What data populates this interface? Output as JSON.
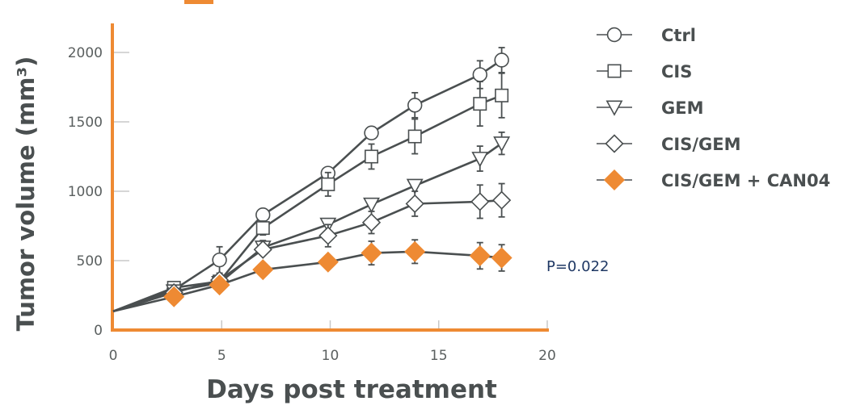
{
  "chart_data": {
    "type": "line",
    "title": "",
    "xlabel": "Days post treatment",
    "ylabel": "Tumor volume (mm³)",
    "xlim": [
      0,
      20
    ],
    "ylim": [
      0,
      2000
    ],
    "xticks": [
      "0",
      "5",
      "10",
      "15",
      "20"
    ],
    "yticks": [
      "0",
      "500",
      "1000",
      "1500",
      "2000"
    ],
    "legend_position": "right",
    "annotation": "P=0.022",
    "colors": {
      "line": "#4a4f50",
      "accent": "#ee8a33",
      "annotation": "#1f3864"
    },
    "series": [
      {
        "name": "Ctrl",
        "marker": "circle",
        "filled": false,
        "x": [
          0,
          2.8,
          4.9,
          6.9,
          9.9,
          11.9,
          13.9,
          16.9,
          17.9
        ],
        "y": [
          135,
          290,
          505,
          830,
          1130,
          1420,
          1620,
          1840,
          1945
        ],
        "err": [
          0,
          0,
          95,
          0,
          0,
          0,
          90,
          100,
          90
        ]
      },
      {
        "name": "CIS",
        "marker": "square",
        "filled": false,
        "x": [
          0,
          2.8,
          4.9,
          6.9,
          9.9,
          11.9,
          13.9,
          16.9,
          17.9
        ],
        "y": [
          135,
          305,
          350,
          735,
          1050,
          1250,
          1395,
          1630,
          1690
        ],
        "err": [
          0,
          0,
          40,
          50,
          85,
          90,
          125,
          160,
          160
        ]
      },
      {
        "name": "GEM",
        "marker": "triangle-down",
        "filled": false,
        "x": [
          0,
          2.8,
          4.9,
          6.9,
          9.9,
          11.9,
          13.9,
          16.9,
          17.9
        ],
        "y": [
          135,
          280,
          340,
          595,
          760,
          905,
          1040,
          1235,
          1345
        ],
        "err": [
          0,
          0,
          0,
          50,
          0,
          0,
          0,
          90,
          80
        ]
      },
      {
        "name": "CIS/GEM",
        "marker": "diamond",
        "filled": false,
        "x": [
          0,
          2.8,
          4.9,
          6.9,
          9.9,
          11.9,
          13.9,
          16.9,
          17.9
        ],
        "y": [
          135,
          270,
          360,
          580,
          680,
          775,
          910,
          925,
          935
        ],
        "err": [
          0,
          0,
          0,
          0,
          80,
          80,
          90,
          120,
          120
        ]
      },
      {
        "name": "CIS/GEM + CAN04",
        "marker": "diamond",
        "filled": true,
        "x": [
          0,
          2.8,
          4.9,
          6.9,
          9.9,
          11.9,
          13.9,
          16.9,
          17.9
        ],
        "y": [
          135,
          240,
          325,
          435,
          490,
          555,
          565,
          535,
          520
        ],
        "err": [
          0,
          0,
          0,
          0,
          0,
          85,
          85,
          95,
          95
        ]
      }
    ]
  }
}
